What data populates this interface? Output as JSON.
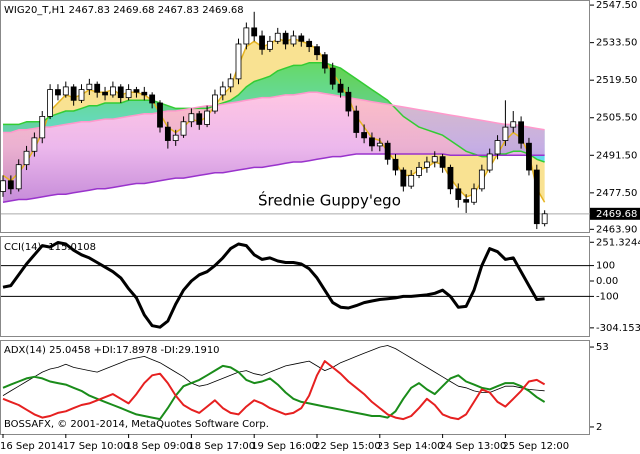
{
  "chart_data": [
    {
      "type": "candlestick",
      "title": "WIG20_T,H1  2467.83 2469.68 2467.83 2469.68",
      "annotation": "Średnie Guppy'ego",
      "categories": [
        "16 Sep 2014",
        null,
        null,
        null,
        null,
        null,
        null,
        null,
        "17 Sep 10:00",
        null,
        null,
        null,
        null,
        null,
        null,
        null,
        "18 Sep 09:00",
        null,
        null,
        null,
        null,
        null,
        null,
        null,
        "18 Sep 17:00",
        null,
        null,
        null,
        null,
        null,
        null,
        null,
        "19 Sep 16:00",
        null,
        null,
        null,
        null,
        null,
        null,
        null,
        "22 Sep 15:00",
        null,
        null,
        null,
        null,
        null,
        null,
        null,
        "23 Sep 14:00",
        null,
        null,
        null,
        null,
        null,
        null,
        null,
        "24 Sep 13:00",
        null,
        null,
        null,
        null,
        null,
        null,
        null,
        "25 Sep 12:00",
        null,
        null,
        null,
        null,
        null
      ],
      "open": [
        2478,
        2482,
        2479,
        2488,
        2493,
        2498,
        2506,
        2516,
        2514,
        2517,
        2512,
        2516,
        2518,
        2515,
        2514,
        2517,
        2513,
        2516,
        2515,
        2514,
        2511,
        2502,
        2497,
        2499,
        2504,
        2507,
        2503,
        2508,
        2514,
        2517,
        2520,
        2533,
        2539,
        2536,
        2531,
        2534,
        2537,
        2533,
        2536,
        2534,
        2532,
        2529,
        2524,
        2518,
        2515,
        2508,
        2500,
        2498,
        2495,
        2496,
        2490,
        2486,
        2480,
        2484,
        2487,
        2489,
        2491,
        2487,
        2479,
        2475,
        2474,
        2479,
        2486,
        2492,
        2497,
        2502,
        2504,
        2496,
        2486,
        2466
      ],
      "high": [
        2484,
        2484,
        2490,
        2495,
        2500,
        2508,
        2518,
        2518,
        2519,
        2518,
        2518,
        2520,
        2519,
        2517,
        2519,
        2518,
        2518,
        2517,
        2517,
        2515,
        2512,
        2504,
        2501,
        2506,
        2509,
        2508,
        2510,
        2516,
        2519,
        2522,
        2535,
        2541,
        2545,
        2538,
        2536,
        2539,
        2538,
        2538,
        2537,
        2535,
        2533,
        2530,
        2526,
        2520,
        2517,
        2510,
        2503,
        2500,
        2498,
        2497,
        2492,
        2487,
        2486,
        2489,
        2491,
        2493,
        2492,
        2488,
        2481,
        2477,
        2481,
        2488,
        2494,
        2499,
        2512,
        2508,
        2506,
        2498,
        2488,
        2471
      ],
      "low": [
        2476,
        2477,
        2478,
        2486,
        2491,
        2496,
        2505,
        2512,
        2513,
        2510,
        2511,
        2514,
        2513,
        2512,
        2513,
        2511,
        2512,
        2513,
        2512,
        2509,
        2500,
        2494,
        2495,
        2498,
        2502,
        2501,
        2502,
        2507,
        2512,
        2515,
        2518,
        2531,
        2534,
        2529,
        2530,
        2533,
        2531,
        2532,
        2532,
        2530,
        2527,
        2522,
        2516,
        2513,
        2506,
        2498,
        2496,
        2493,
        2493,
        2488,
        2484,
        2478,
        2479,
        2483,
        2485,
        2487,
        2485,
        2477,
        2472,
        2470,
        2473,
        2478,
        2485,
        2490,
        2495,
        2500,
        2494,
        2484,
        2464,
        2465
      ],
      "close": [
        2482,
        2479,
        2488,
        2493,
        2498,
        2506,
        2516,
        2514,
        2517,
        2512,
        2516,
        2518,
        2515,
        2514,
        2517,
        2513,
        2516,
        2515,
        2514,
        2511,
        2502,
        2497,
        2499,
        2504,
        2507,
        2503,
        2508,
        2514,
        2517,
        2520,
        2533,
        2539,
        2536,
        2531,
        2534,
        2537,
        2533,
        2536,
        2534,
        2532,
        2529,
        2524,
        2518,
        2515,
        2508,
        2500,
        2498,
        2495,
        2496,
        2490,
        2486,
        2480,
        2484,
        2487,
        2489,
        2491,
        2487,
        2479,
        2475,
        2474,
        2479,
        2486,
        2492,
        2497,
        2502,
        2504,
        2496,
        2486,
        2466,
        2469.68
      ],
      "up_color": "#ffffff",
      "down_color": "#000000",
      "ribbons": [
        {
          "color": "#e6b422",
          "values": [
            2484,
            2482,
            2485,
            2489,
            2494,
            2500,
            2508,
            2511,
            2514,
            2513,
            2514,
            2516,
            2515,
            2515,
            2516,
            2514,
            2515,
            2515,
            2514,
            2512,
            2507,
            2502,
            2500,
            2502,
            2505,
            2504,
            2506,
            2510,
            2514,
            2517,
            2525,
            2532,
            2534,
            2532,
            2533,
            2535,
            2534,
            2535,
            2534,
            2533,
            2531,
            2527,
            2522,
            2518,
            2513,
            2506,
            2502,
            2498,
            2497,
            2493,
            2489,
            2484,
            2484,
            2486,
            2487,
            2489,
            2488,
            2483,
            2479,
            2476,
            2477,
            2482,
            2487,
            2492,
            2497,
            2500,
            2498,
            2492,
            2479,
            2474
          ]
        },
        {
          "color": "#33cc33",
          "values": [
            2503,
            2503,
            2503,
            2504,
            2504,
            2504,
            2506,
            2507,
            2508,
            2508,
            2509,
            2510,
            2510,
            2511,
            2511,
            2511,
            2512,
            2512,
            2512,
            2512,
            2511,
            2510,
            2509,
            2509,
            2509,
            2509,
            2509,
            2510,
            2511,
            2512,
            2514,
            2517,
            2519,
            2520,
            2521,
            2523,
            2524,
            2525,
            2525,
            2526,
            2526,
            2526,
            2525,
            2524,
            2522,
            2520,
            2518,
            2516,
            2514,
            2512,
            2509,
            2506,
            2504,
            2502,
            2501,
            2500,
            2499,
            2497,
            2495,
            2493,
            2492,
            2491,
            2491,
            2492,
            2492,
            2493,
            2493,
            2492,
            2490,
            2489
          ]
        },
        {
          "color": "#ff99cc",
          "values": [
            2500,
            2500,
            2501,
            2501,
            2501.5,
            2502,
            2502,
            2502.5,
            2503,
            2503.5,
            2504,
            2504,
            2504.5,
            2505,
            2505,
            2505.5,
            2506,
            2506.5,
            2507,
            2507,
            2507.5,
            2508,
            2508,
            2508.5,
            2509,
            2509.5,
            2510,
            2510,
            2510.5,
            2511,
            2511.5,
            2512,
            2512.5,
            2513,
            2513,
            2513.5,
            2514,
            2514,
            2514.5,
            2515,
            2515,
            2514.5,
            2514,
            2513.5,
            2513,
            2512.5,
            2512,
            2511.5,
            2511,
            2510.5,
            2510,
            2509.5,
            2509,
            2508.5,
            2508,
            2507.5,
            2507,
            2506.5,
            2506,
            2505.5,
            2505,
            2504.5,
            2504,
            2503.5,
            2503,
            2503,
            2502.5,
            2502,
            2501.5,
            2501
          ]
        },
        {
          "color": "#9933cc",
          "values": [
            2474,
            2474.5,
            2475,
            2475,
            2475.5,
            2476,
            2476.5,
            2477,
            2477,
            2477.5,
            2478,
            2478.5,
            2479,
            2479,
            2479.5,
            2480,
            2480.5,
            2481,
            2481,
            2481.5,
            2482,
            2482.5,
            2483,
            2483,
            2483.5,
            2484,
            2484.5,
            2485,
            2485,
            2485.5,
            2486,
            2486.5,
            2487,
            2487,
            2487.5,
            2488,
            2488.5,
            2489,
            2489,
            2489.5,
            2490,
            2490.5,
            2491,
            2491,
            2491.5,
            2492,
            2492,
            2492,
            2492,
            2492,
            2492,
            2492,
            2492,
            2492,
            2492,
            2492,
            2492,
            2491.5,
            2491.5,
            2491.5,
            2491.5,
            2491.5,
            2491.5,
            2491.5,
            2491.5,
            2491.5,
            2491.5,
            2491.5,
            2491.5,
            2491.5
          ]
        }
      ],
      "ylim": [
        2462.9,
        2549.4
      ],
      "yticks": [
        {
          "value": 2547.5,
          "label": "2547.50"
        },
        {
          "value": 2533.5,
          "label": "2533.50"
        },
        {
          "value": 2519.5,
          "label": "2519.50"
        },
        {
          "value": 2505.5,
          "label": "2505.50"
        },
        {
          "value": 2491.5,
          "label": "2491.50"
        },
        {
          "value": 2477.5,
          "label": "2477.50"
        },
        {
          "value": 2463.9,
          "label": "2463.90"
        }
      ]
    },
    {
      "type": "line",
      "title": "CCI(14) -115.0108",
      "series": [
        {
          "color": "#000000",
          "values": [
            -40,
            -30,
            40,
            110,
            170,
            230,
            220,
            250,
            240,
            200,
            170,
            150,
            120,
            90,
            60,
            20,
            -50,
            -110,
            -220,
            -290,
            -300,
            -260,
            -150,
            -60,
            0,
            40,
            60,
            100,
            150,
            210,
            240,
            230,
            170,
            140,
            150,
            130,
            120,
            120,
            110,
            80,
            20,
            -60,
            -140,
            -170,
            -175,
            -160,
            -140,
            -130,
            -120,
            -115,
            -110,
            -100,
            -100,
            -95,
            -90,
            -80,
            -60,
            -100,
            -170,
            -165,
            -60,
            100,
            210,
            190,
            140,
            150,
            60,
            -30,
            -120,
            -115.0108
          ]
        }
      ],
      "levels": [
        100,
        -100
      ],
      "ylim": [
        -357,
        292
      ],
      "yticks": [
        251.3244,
        100,
        {
          "value": 0,
          "label": "0.00"
        },
        -100,
        -304.1534
      ]
    },
    {
      "type": "line",
      "title": "ADX(14) 25.0458 +DI:17.8978 -DI:29.1910",
      "footer": "BOSSAFX, © 2001-2014, MetaQuotes Software Corp.",
      "series": [
        {
          "color": "#000000",
          "values": [
            22,
            25,
            28,
            31,
            34,
            37,
            39,
            40,
            42,
            40,
            39,
            38,
            37,
            39,
            41,
            43,
            45,
            46,
            47,
            45,
            43,
            40,
            37,
            34,
            30,
            28,
            29,
            31,
            33,
            35,
            37,
            38,
            36,
            35,
            37,
            39,
            41,
            42,
            43,
            44,
            41,
            38,
            40,
            43,
            45,
            47,
            49,
            51,
            53,
            54,
            52,
            49,
            46,
            43,
            40,
            37,
            34,
            31,
            28,
            27,
            25,
            24,
            24,
            26,
            28,
            28,
            27,
            26,
            25.5,
            25.0458
          ]
        },
        {
          "color": "#1a8c1a",
          "values": [
            27,
            29,
            31,
            33,
            34,
            33,
            31,
            30,
            29,
            27,
            25,
            22,
            20,
            18,
            16,
            14,
            12,
            10,
            9,
            8,
            7,
            14,
            22,
            28,
            30,
            32,
            35,
            38,
            41,
            40,
            37,
            32,
            30,
            31,
            33,
            29,
            24,
            20,
            18,
            17,
            16,
            15,
            14,
            13,
            12,
            11,
            10,
            9,
            9,
            8,
            12,
            20,
            27,
            30,
            26,
            23,
            28,
            33,
            35,
            31,
            29,
            27,
            26,
            28,
            30,
            30,
            28,
            25,
            21,
            17.8978
          ]
        },
        {
          "color": "#e62020",
          "values": [
            20,
            18,
            16,
            13,
            10,
            8,
            9,
            11,
            12,
            14,
            16,
            17,
            19,
            21,
            23,
            20,
            17,
            23,
            30,
            35,
            36,
            30,
            22,
            16,
            13,
            11,
            15,
            19,
            14,
            11,
            10,
            15,
            19,
            17,
            14,
            12,
            10,
            11,
            14,
            22,
            35,
            44,
            40,
            36,
            31,
            27,
            23,
            18,
            14,
            10,
            8,
            7,
            9,
            14,
            20,
            16,
            10,
            8,
            7,
            10,
            18,
            26,
            24,
            18,
            15,
            20,
            25,
            31,
            32,
            29.191
          ]
        }
      ],
      "ylim": [
        -2.5,
        57.5
      ],
      "yticks": [
        53,
        2
      ]
    }
  ]
}
